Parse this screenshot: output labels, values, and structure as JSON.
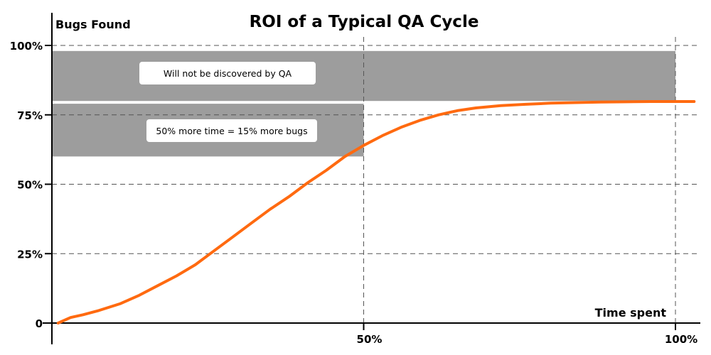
{
  "chart_data": {
    "type": "line",
    "title": "ROI of a Typical QA Cycle",
    "xlabel": "Time spent",
    "ylabel": "Bugs Found",
    "xlim": [
      0,
      102
    ],
    "ylim": [
      0,
      100
    ],
    "x_ticks": [
      {
        "value": 50,
        "label": "50%"
      },
      {
        "value": 100,
        "label": "100%"
      }
    ],
    "y_ticks": [
      {
        "value": 0,
        "label": "0"
      },
      {
        "value": 25,
        "label": "25%"
      },
      {
        "value": 50,
        "label": "50%"
      },
      {
        "value": 75,
        "label": "75%"
      },
      {
        "value": 100,
        "label": "100%"
      }
    ],
    "grid": true,
    "series": [
      {
        "color": "#ff6a10",
        "x": [
          1,
          3,
          5,
          7.5,
          11,
          14,
          17,
          20,
          23,
          26,
          29,
          32,
          35,
          38,
          41,
          44,
          47,
          50,
          53,
          56,
          59,
          62,
          65,
          68,
          72,
          76,
          80,
          84,
          88,
          92,
          96,
          100,
          103
        ],
        "y": [
          0,
          2,
          3,
          4.5,
          7,
          10,
          13.5,
          17,
          21,
          26,
          31,
          36,
          41,
          45.5,
          50.5,
          55,
          60,
          64,
          67.5,
          70.5,
          73,
          75,
          76.5,
          77.5,
          78.3,
          78.8,
          79.2,
          79.4,
          79.6,
          79.7,
          79.8,
          79.8,
          79.8
        ]
      }
    ],
    "bands": [
      {
        "from": 80,
        "to": 98,
        "x_from": 0,
        "x_to": 100,
        "color": "#9d9d9d",
        "label": "Will not be discovered by QA"
      },
      {
        "from": 60,
        "to": 79,
        "x_from": 0,
        "x_to": 50,
        "color": "#9d9d9d",
        "label": "50% more time = 15% more bugs"
      }
    ]
  }
}
